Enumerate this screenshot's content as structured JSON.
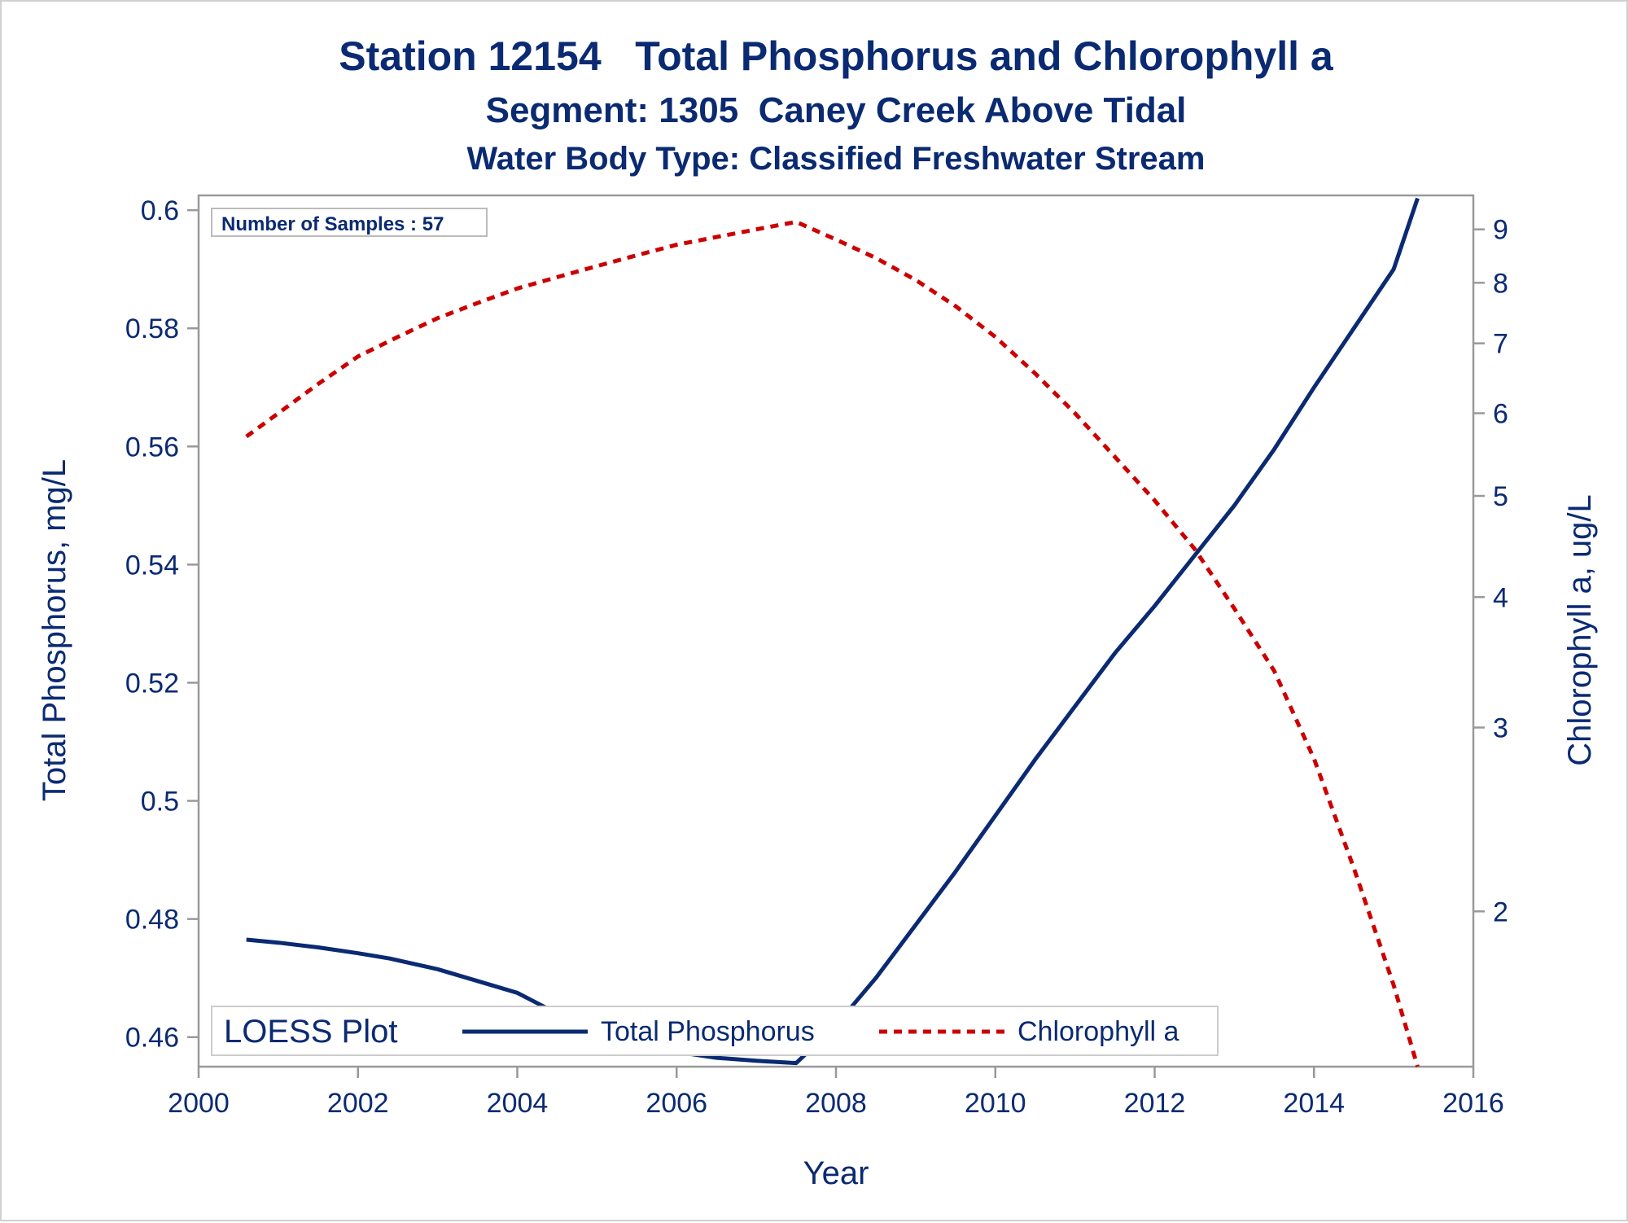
{
  "chart_data": {
    "type": "line",
    "title": "Station 12154   Total Phosphorus and Chlorophyll a",
    "subtitle": "Segment: 1305  Caney Creek Above Tidal",
    "subtitle2": "Water Body Type: Classified Freshwater Stream",
    "inset_label": "Number of Samples : 57",
    "xlabel": "Year",
    "ylabel": "Total Phosphorus, mg/L",
    "y2label": "Chlorophyll a, ug/L",
    "xlim": [
      2000,
      2016
    ],
    "ylim": [
      0.455,
      0.6025
    ],
    "y2lim": [
      1.42,
      9.7
    ],
    "y2_scale": "log",
    "x_ticks": [
      "2000",
      "2002",
      "2004",
      "2006",
      "2008",
      "2010",
      "2012",
      "2014",
      "2016"
    ],
    "y_ticks": [
      "0.46",
      "0.48",
      "0.5",
      "0.52",
      "0.54",
      "0.56",
      "0.58",
      "0.6"
    ],
    "y2_ticks": [
      "2",
      "3",
      "4",
      "5",
      "6",
      "7",
      "8",
      "9"
    ],
    "legend": {
      "title": "LOESS Plot",
      "placement": "bottom-left"
    },
    "grid": false,
    "series": [
      {
        "name": "Total Phosphorus",
        "axis": "left",
        "color": "#0a2a72",
        "style": "solid",
        "x": [
          2000.6,
          2001.0,
          2001.5,
          2002.0,
          2002.4,
          2003.0,
          2003.5,
          2004.0,
          2004.5,
          2005.0,
          2005.5,
          2006.0,
          2006.5,
          2007.0,
          2007.5,
          2008.0,
          2008.5,
          2009.0,
          2009.5,
          2010.0,
          2010.5,
          2011.0,
          2011.5,
          2012.0,
          2012.5,
          2013.0,
          2013.5,
          2014.0,
          2014.5,
          2015.0,
          2015.3
        ],
        "values": [
          0.4765,
          0.476,
          0.4752,
          0.4742,
          0.4733,
          0.4715,
          0.4695,
          0.4675,
          0.464,
          0.461,
          0.459,
          0.4575,
          0.4565,
          0.456,
          0.4556,
          0.462,
          0.47,
          0.479,
          0.488,
          0.4975,
          0.507,
          0.516,
          0.525,
          0.533,
          0.5415,
          0.55,
          0.5595,
          0.57,
          0.58,
          0.59,
          0.602
        ]
      },
      {
        "name": "Chlorophyll a",
        "axis": "right",
        "color": "#cc0000",
        "style": "dashed",
        "x": [
          2000.6,
          2001.0,
          2001.5,
          2002.0,
          2002.5,
          2003.0,
          2003.5,
          2004.0,
          2004.5,
          2005.0,
          2005.5,
          2006.0,
          2006.5,
          2007.0,
          2007.5,
          2008.0,
          2008.5,
          2009.0,
          2009.5,
          2010.0,
          2010.5,
          2011.0,
          2011.5,
          2012.0,
          2012.5,
          2013.0,
          2013.5,
          2014.0,
          2014.5,
          2015.0,
          2015.3
        ],
        "values": [
          5.7,
          6.0,
          6.4,
          6.8,
          7.1,
          7.4,
          7.65,
          7.9,
          8.1,
          8.3,
          8.5,
          8.7,
          8.85,
          9.0,
          9.15,
          8.8,
          8.45,
          8.05,
          7.6,
          7.1,
          6.55,
          6.0,
          5.45,
          4.95,
          4.45,
          3.9,
          3.4,
          2.8,
          2.2,
          1.7,
          1.42
        ]
      }
    ]
  }
}
